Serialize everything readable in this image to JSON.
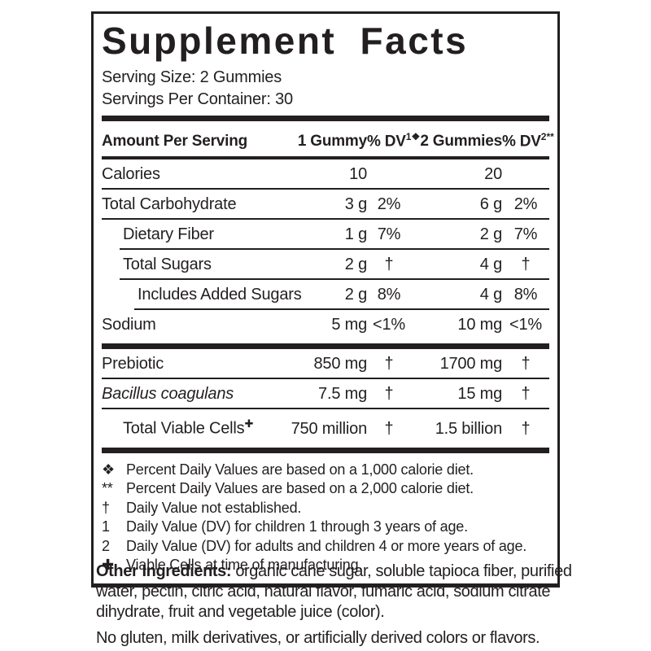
{
  "colors": {
    "ink": "#231f20",
    "background": "#ffffff"
  },
  "title": "Supplement Facts",
  "serving": {
    "size": "Serving Size: 2 Gummies",
    "per_container": "Servings Per Container: 30"
  },
  "table": {
    "headers": {
      "amount_per_serving": "Amount Per Serving",
      "col1": "1 Gummy",
      "dv1_base": "% DV",
      "dv1_sup": "1❖",
      "col2": "2 Gummies",
      "dv2_base": "% DV",
      "dv2_sup": "2**"
    },
    "rows": [
      {
        "label": "Calories",
        "amount1": "10",
        "dv1": "",
        "amount2": "20",
        "dv2": ""
      },
      {
        "label": "Total Carbohydrate",
        "amount1": "3 g",
        "dv1": "2%",
        "amount2": "6 g",
        "dv2": "2%"
      },
      {
        "label": "Dietary Fiber",
        "amount1": "1 g",
        "dv1": "7%",
        "amount2": "2 g",
        "dv2": "7%"
      },
      {
        "label": "Total Sugars",
        "amount1": "2 g",
        "dv1": "†",
        "amount2": "4 g",
        "dv2": "†"
      },
      {
        "label": "Includes Added Sugars",
        "amount1": "2 g",
        "dv1": "8%",
        "amount2": "4 g",
        "dv2": "8%"
      },
      {
        "label": "Sodium",
        "amount1": "5 mg",
        "dv1": "<1%",
        "amount2": "10 mg",
        "dv2": "<1%"
      }
    ],
    "rows2": [
      {
        "label": "Prebiotic",
        "amount1": "850 mg",
        "dv1": "†",
        "amount2": "1700 mg",
        "dv2": "†"
      },
      {
        "label": "Bacillus coagulans",
        "amount1": "7.5 mg",
        "dv1": "†",
        "amount2": "15 mg",
        "dv2": "†"
      },
      {
        "label": "Total Viable Cells",
        "label_sup": "✚",
        "amount1": "750 million",
        "dv1": "†",
        "amount2": "1.5 billion",
        "dv2": "†"
      }
    ]
  },
  "footnotes": [
    {
      "symbol": "❖",
      "text": "Percent Daily Values are based on a 1,000 calorie diet."
    },
    {
      "symbol": "**",
      "text": "Percent Daily Values are based on a 2,000 calorie diet."
    },
    {
      "symbol": "†",
      "text": "Daily Value not established."
    },
    {
      "symbol": "1",
      "text": "Daily Value (DV) for children 1 through 3 years of age."
    },
    {
      "symbol": "2",
      "text": "Daily Value (DV) for adults and children 4 or more years of age."
    },
    {
      "symbol": "✚",
      "text": "Viable Cells at time of manufacturing."
    }
  ],
  "other_ingredients": {
    "label": "Other Ingredients:",
    "text": "organic cane sugar, soluble tapioca fiber, purified water, pectin, citric acid, natural flavor, fumaric acid, sodium citrate dihydrate, fruit and vegetable juice (color)."
  },
  "allergen_statement": "No gluten, milk derivatives, or artificially derived colors or flavors."
}
